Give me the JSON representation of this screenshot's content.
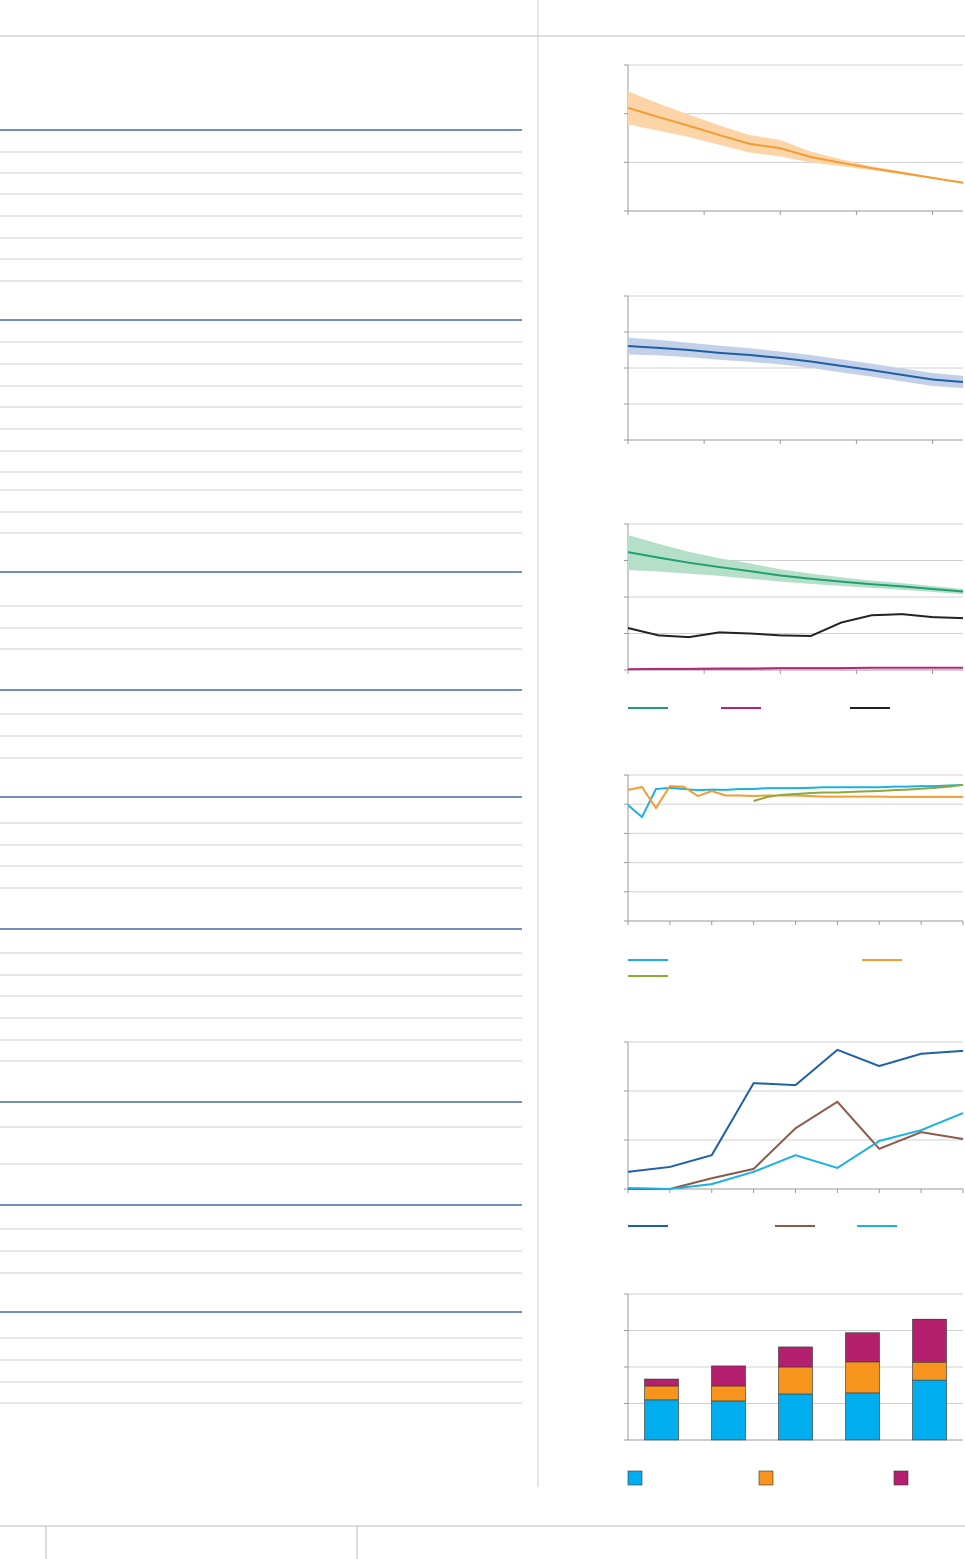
{
  "chart_data": [
    {
      "type": "line",
      "xlim": [
        0,
        22
      ],
      "xticks": [
        0,
        5,
        10,
        15,
        20
      ],
      "ylim": [
        0,
        3
      ],
      "yticks": [
        0,
        1,
        2,
        3
      ],
      "grid": true,
      "x": [
        0,
        2,
        4,
        6,
        8,
        10,
        12,
        14,
        16,
        18,
        20,
        22
      ],
      "series": [
        {
          "color": "#f39c34",
          "band_color": "#fbd4a8",
          "values": [
            2.12,
            1.93,
            1.75,
            1.56,
            1.38,
            1.29,
            1.11,
            0.99,
            0.88,
            0.78,
            0.68,
            0.58
          ],
          "lower": [
            1.78,
            1.65,
            1.52,
            1.36,
            1.2,
            1.12,
            1.0,
            0.92,
            0.84,
            0.75,
            0.66,
            0.56
          ],
          "upper": [
            2.46,
            2.21,
            1.98,
            1.76,
            1.56,
            1.46,
            1.22,
            1.06,
            0.92,
            0.81,
            0.7,
            0.6
          ]
        }
      ]
    },
    {
      "type": "line",
      "xlim": [
        0,
        22
      ],
      "xticks": [
        0,
        5,
        10,
        15,
        20
      ],
      "ylim": [
        0,
        4
      ],
      "yticks": [
        0,
        1,
        2,
        3,
        4
      ],
      "grid": true,
      "x": [
        0,
        2,
        4,
        6,
        8,
        10,
        12,
        14,
        16,
        18,
        20,
        22
      ],
      "series": [
        {
          "color": "#1f5fa6",
          "band_color": "#c2d0e8",
          "values": [
            2.61,
            2.56,
            2.5,
            2.42,
            2.36,
            2.28,
            2.18,
            2.06,
            1.94,
            1.81,
            1.68,
            1.61
          ],
          "lower": [
            2.38,
            2.35,
            2.3,
            2.23,
            2.17,
            2.1,
            2.0,
            1.88,
            1.76,
            1.63,
            1.5,
            1.44
          ],
          "upper": [
            2.84,
            2.78,
            2.7,
            2.62,
            2.55,
            2.46,
            2.36,
            2.24,
            2.12,
            1.99,
            1.86,
            1.78
          ]
        }
      ]
    },
    {
      "type": "line",
      "xlim": [
        0,
        22
      ],
      "xticks": [
        0,
        5,
        10,
        15,
        20
      ],
      "ylim": [
        0,
        4
      ],
      "yticks": [
        0,
        1,
        2,
        3,
        4
      ],
      "grid": true,
      "x": [
        0,
        2,
        4,
        6,
        8,
        10,
        12,
        14,
        16,
        18,
        20,
        22
      ],
      "series": [
        {
          "color": "#1fa071",
          "band_color": "#b5dfc9",
          "values": [
            3.23,
            3.08,
            2.94,
            2.82,
            2.71,
            2.59,
            2.5,
            2.42,
            2.35,
            2.29,
            2.22,
            2.15
          ],
          "lower": [
            2.74,
            2.7,
            2.64,
            2.58,
            2.5,
            2.42,
            2.36,
            2.3,
            2.25,
            2.2,
            2.14,
            2.08
          ],
          "upper": [
            3.7,
            3.46,
            3.24,
            3.06,
            2.92,
            2.76,
            2.64,
            2.54,
            2.45,
            2.38,
            2.3,
            2.22
          ]
        },
        {
          "color": "#b3257c",
          "values": [
            0.02,
            0.03,
            0.03,
            0.04,
            0.04,
            0.05,
            0.05,
            0.05,
            0.06,
            0.06,
            0.06,
            0.06
          ]
        },
        {
          "color": "#222222",
          "values": [
            1.15,
            0.95,
            0.9,
            1.03,
            1.0,
            0.95,
            0.93,
            1.3,
            1.5,
            1.53,
            1.45,
            1.42
          ]
        }
      ]
    },
    {
      "type": "line",
      "xlim": [
        0,
        24
      ],
      "xticks": [
        0,
        3,
        6,
        9,
        12,
        15,
        18,
        21,
        24
      ],
      "ylim": [
        0,
        5
      ],
      "yticks": [
        0,
        1,
        2,
        3,
        4,
        5
      ],
      "grid": true,
      "x": [
        0,
        1,
        2,
        3,
        4,
        5,
        6,
        7,
        8,
        9,
        10,
        11,
        12,
        13,
        14,
        15,
        16,
        17,
        18,
        19,
        20,
        21,
        22,
        23,
        24
      ],
      "series": [
        {
          "color": "#1eb0e0",
          "values": [
            3.97,
            3.56,
            4.52,
            4.56,
            4.52,
            4.48,
            4.5,
            4.49,
            4.52,
            4.52,
            4.55,
            4.55,
            4.55,
            4.56,
            4.58,
            4.58,
            4.58,
            4.58,
            4.58,
            4.6,
            4.6,
            4.62,
            4.62,
            4.64,
            4.66
          ]
        },
        {
          "color": "#f39c34",
          "values": [
            4.49,
            4.59,
            3.87,
            4.62,
            4.6,
            4.28,
            4.45,
            4.3,
            4.3,
            4.28,
            4.3,
            4.3,
            4.3,
            4.28,
            4.26,
            4.26,
            4.26,
            4.26,
            4.26,
            4.25,
            4.25,
            4.25,
            4.25,
            4.25,
            4.25
          ]
        },
        {
          "color": "#8fa83a",
          "values": [
            null,
            null,
            null,
            null,
            null,
            null,
            null,
            null,
            null,
            4.11,
            4.25,
            4.32,
            4.35,
            4.38,
            4.4,
            4.4,
            4.42,
            4.44,
            4.45,
            4.48,
            4.5,
            4.53,
            4.56,
            4.6,
            4.66
          ]
        }
      ]
    },
    {
      "type": "line",
      "xlim": [
        0,
        8
      ],
      "xticks": [
        0,
        1,
        2,
        3,
        4,
        5,
        6,
        7,
        8
      ],
      "ylim": [
        0,
        3
      ],
      "yticks": [
        0,
        1,
        2,
        3
      ],
      "grid": true,
      "x": [
        0,
        1,
        2,
        3,
        4,
        5,
        6,
        7,
        8
      ],
      "series": [
        {
          "color": "#1f5fa6",
          "values": [
            0.35,
            0.45,
            0.69,
            2.16,
            2.12,
            2.84,
            2.51,
            2.76,
            2.82
          ]
        },
        {
          "color": "#8b5a4a",
          "values": [
            0,
            0,
            0.22,
            0.41,
            1.24,
            1.78,
            0.82,
            1.16,
            1.02
          ]
        },
        {
          "color": "#1eb0e0",
          "values": [
            0.02,
            0,
            0.1,
            0.35,
            0.69,
            0.43,
            0.98,
            1.2,
            1.55
          ]
        }
      ]
    },
    {
      "type": "bar",
      "stacked": true,
      "ylim": [
        0,
        4
      ],
      "yticks": [
        0,
        1,
        2,
        3,
        4
      ],
      "grid": true,
      "categories": [
        null,
        null,
        null,
        null,
        null
      ],
      "series": [
        {
          "color": "#00aeef",
          "values": [
            1.1,
            1.07,
            1.26,
            1.29,
            1.64
          ]
        },
        {
          "color": "#f7941d",
          "values": [
            0.38,
            0.41,
            0.74,
            0.85,
            0.49
          ]
        },
        {
          "color": "#b5206e",
          "values": [
            0.19,
            0.55,
            0.55,
            0.8,
            1.18
          ]
        }
      ]
    }
  ]
}
